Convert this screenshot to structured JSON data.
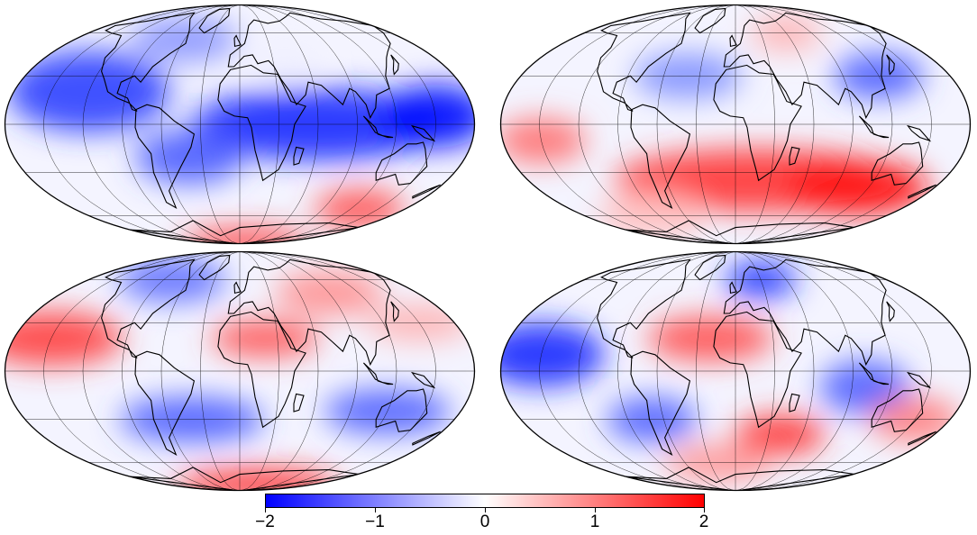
{
  "maps": [
    {
      "id": "top-left"
    },
    {
      "id": "top-right"
    },
    {
      "id": "bottom-left"
    },
    {
      "id": "bottom-right"
    }
  ],
  "colorbar": {
    "min": -2,
    "max": 2,
    "colors": {
      "low": "#0000ff",
      "mid": "#ffffff",
      "high": "#ff0000"
    },
    "ticks": [
      "−2",
      "−1",
      "0",
      "1",
      "2"
    ]
  }
}
